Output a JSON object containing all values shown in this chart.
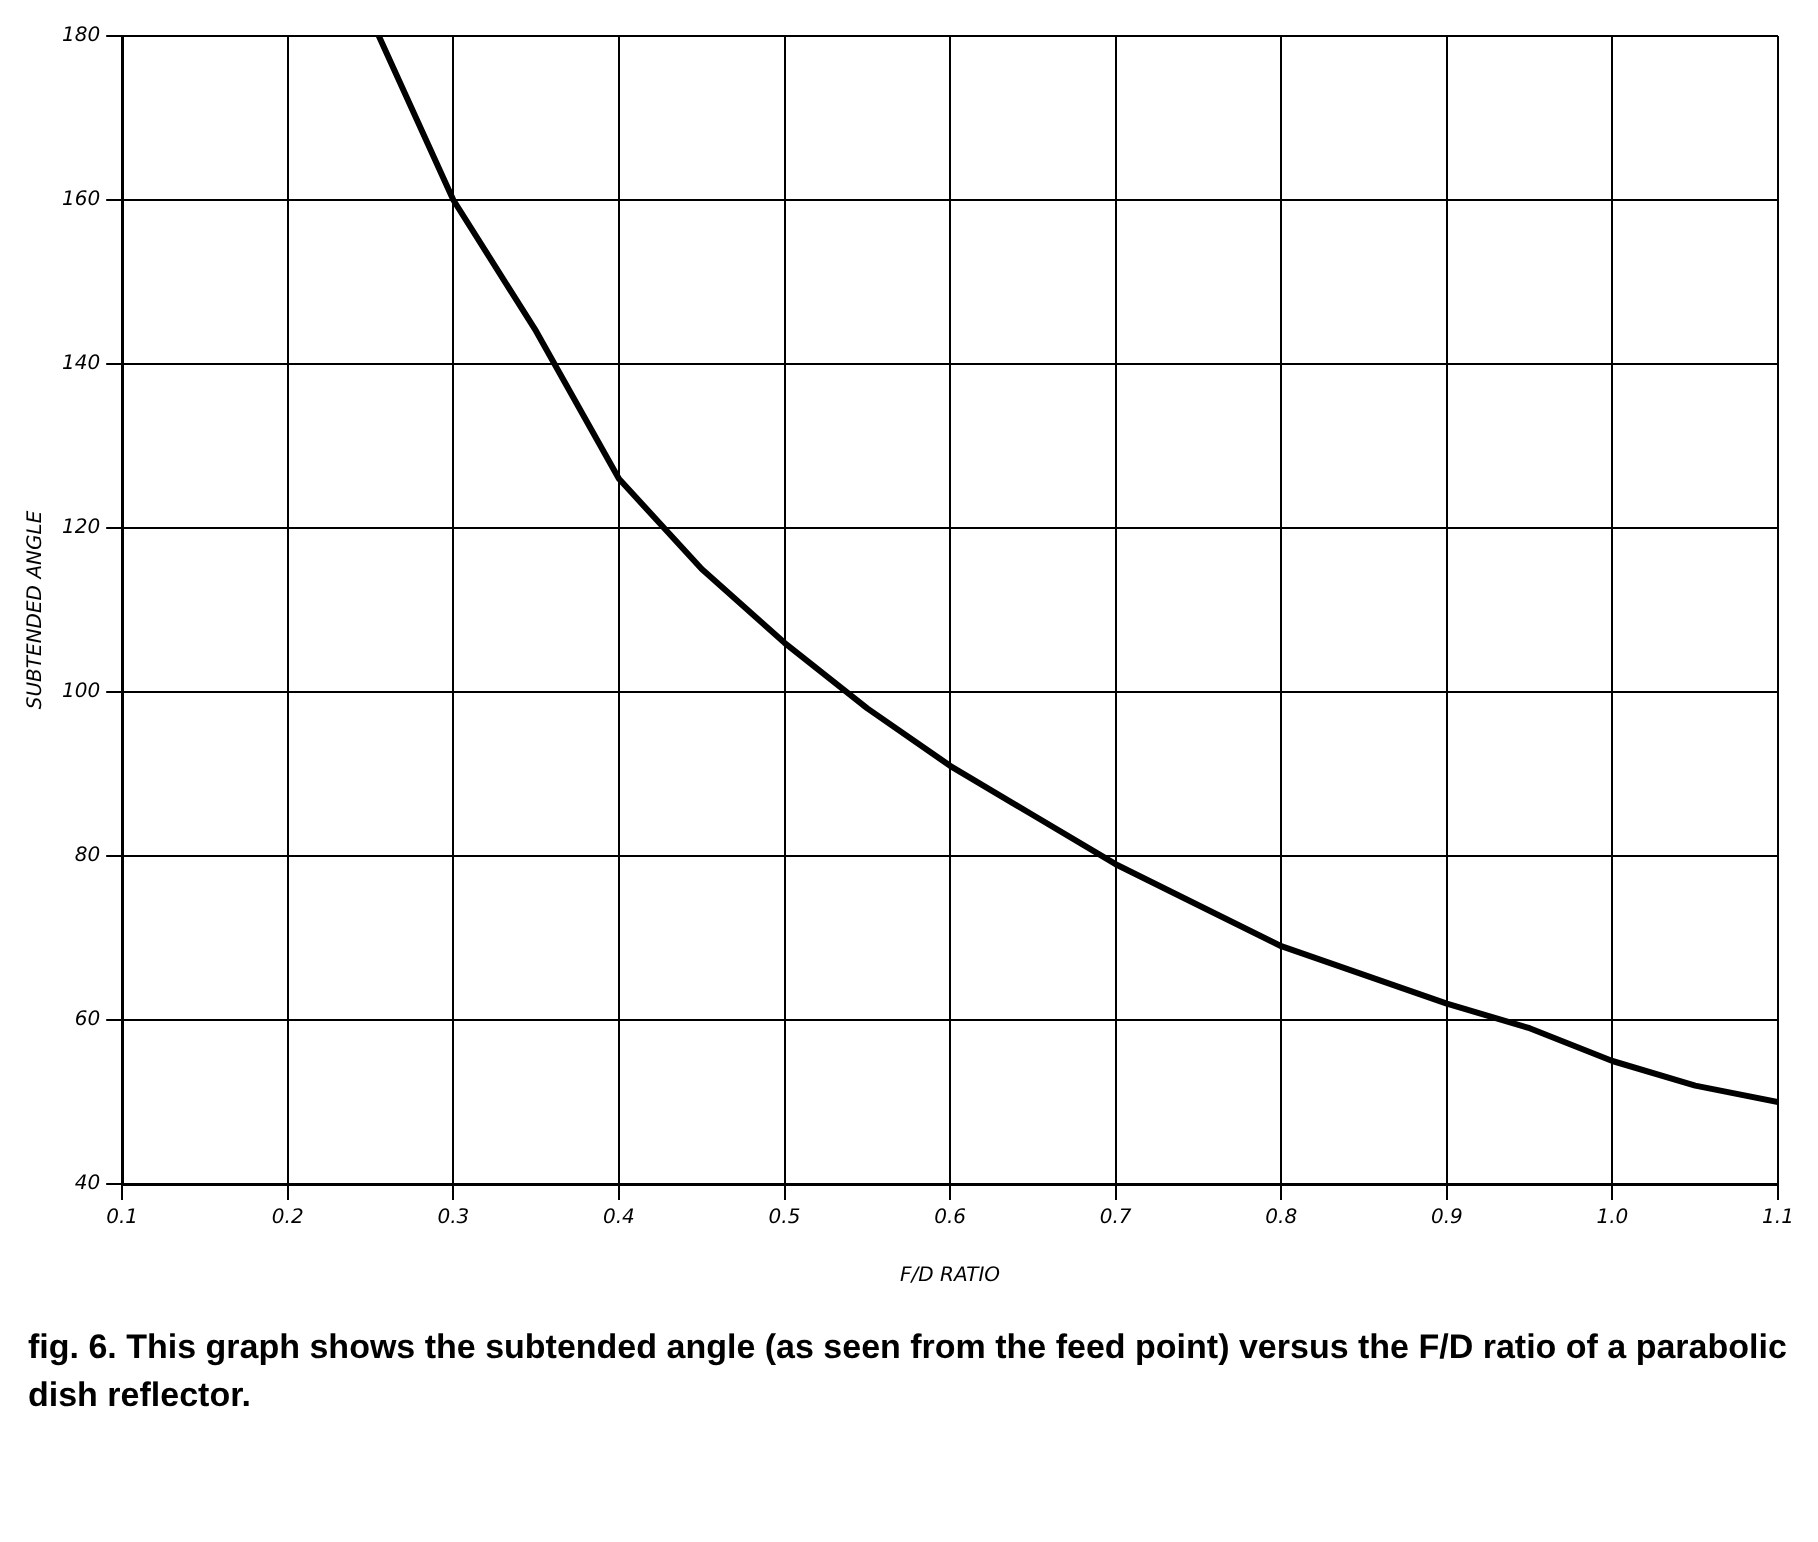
{
  "chart_data": {
    "type": "line",
    "xlabel": "F/D RATIO",
    "ylabel": "SUBTENDED ANGLE",
    "x": [
      0.255,
      0.3,
      0.35,
      0.4,
      0.45,
      0.5,
      0.55,
      0.6,
      0.65,
      0.7,
      0.75,
      0.8,
      0.9,
      0.95,
      1.0,
      1.05,
      1.1
    ],
    "series": [
      {
        "color": "#000000",
        "values": [
          180,
          160,
          144,
          126,
          115,
          106,
          98,
          91,
          85,
          79,
          74,
          69,
          62,
          59,
          55,
          52,
          50
        ]
      }
    ],
    "xlim": [
      0.1,
      1.1
    ],
    "xticks": [
      0.1,
      0.2,
      0.3,
      0.4,
      0.5,
      0.6,
      0.7,
      0.8,
      0.9,
      {
        "value": 1,
        "label": "1.0"
      },
      1.1
    ],
    "ylim": [
      40,
      180
    ],
    "yticks": [
      40,
      60,
      80,
      100,
      120,
      140,
      160,
      180
    ],
    "grid": true,
    "legend": false,
    "marker": "none",
    "line_style": "solid",
    "annotations": [
      "fig. 6. This graph shows the subtended angle (as seen from the feed point) versus the F/D ratio of a parabolic dish reflector."
    ]
  }
}
